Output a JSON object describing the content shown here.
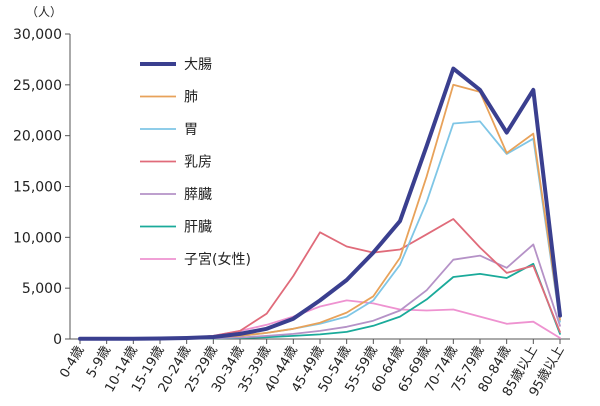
{
  "chart_data": {
    "type": "line",
    "unit_label": "（人）",
    "title": "",
    "xlabel": "",
    "ylabel": "",
    "ylim": [
      0,
      30000
    ],
    "yticks": [
      0,
      5000,
      10000,
      15000,
      20000,
      25000,
      30000
    ],
    "ytick_labels": [
      "0",
      "5,000",
      "10,000",
      "15,000",
      "20,000",
      "25,000",
      "30,000"
    ],
    "grid": false,
    "legend_position": "top-left",
    "categories": [
      "0-4歳",
      "5-9歳",
      "10-14歳",
      "15-19歳",
      "20-24歳",
      "25-29歳",
      "30-34歳",
      "35-39歳",
      "40-44歳",
      "45-49歳",
      "50-54歳",
      "55-59歳",
      "60-64歳",
      "65-69歳",
      "70-74歳",
      "75-79歳",
      "80-84歳",
      "85歳以上",
      "95歳以上"
    ],
    "series": [
      {
        "name": "大腸",
        "color": "#3a3f8f",
        "width": 4,
        "values": [
          20,
          20,
          30,
          50,
          100,
          200,
          500,
          1000,
          2000,
          3800,
          5800,
          8500,
          11600,
          19000,
          26600,
          24500,
          20300,
          24500,
          2300
        ]
      },
      {
        "name": "肺",
        "color": "#e8a25a",
        "width": 1.8,
        "values": [
          20,
          20,
          30,
          50,
          80,
          150,
          300,
          600,
          1000,
          1600,
          2600,
          4200,
          8000,
          16000,
          25000,
          24300,
          18300,
          20200,
          1900
        ]
      },
      {
        "name": "胃",
        "color": "#7fc6e6",
        "width": 1.8,
        "values": [
          20,
          20,
          30,
          50,
          80,
          150,
          300,
          600,
          1000,
          1500,
          2200,
          3800,
          7300,
          13500,
          21200,
          21400,
          18200,
          19700,
          1700
        ]
      },
      {
        "name": "乳房",
        "color": "#e06b7a",
        "width": 1.8,
        "values": [
          20,
          20,
          30,
          50,
          100,
          300,
          800,
          2500,
          6200,
          10500,
          9100,
          8500,
          8800,
          10300,
          11800,
          9000,
          6500,
          7200,
          700
        ]
      },
      {
        "name": "膵臓",
        "color": "#b592c7",
        "width": 1.8,
        "values": [
          10,
          10,
          20,
          30,
          50,
          80,
          150,
          300,
          500,
          800,
          1200,
          1800,
          2800,
          4800,
          7800,
          8200,
          7000,
          9300,
          1300
        ]
      },
      {
        "name": "肝臓",
        "color": "#1aaa9a",
        "width": 1.8,
        "values": [
          10,
          10,
          20,
          30,
          40,
          60,
          100,
          180,
          300,
          450,
          700,
          1300,
          2200,
          3900,
          6100,
          6400,
          6000,
          7400,
          500
        ]
      },
      {
        "name": "子宮(女性)",
        "color": "#ee92d0",
        "width": 1.8,
        "values": [
          10,
          10,
          20,
          30,
          100,
          300,
          800,
          1400,
          2200,
          3200,
          3800,
          3500,
          2900,
          2800,
          2900,
          2200,
          1500,
          1700,
          100
        ]
      }
    ]
  }
}
